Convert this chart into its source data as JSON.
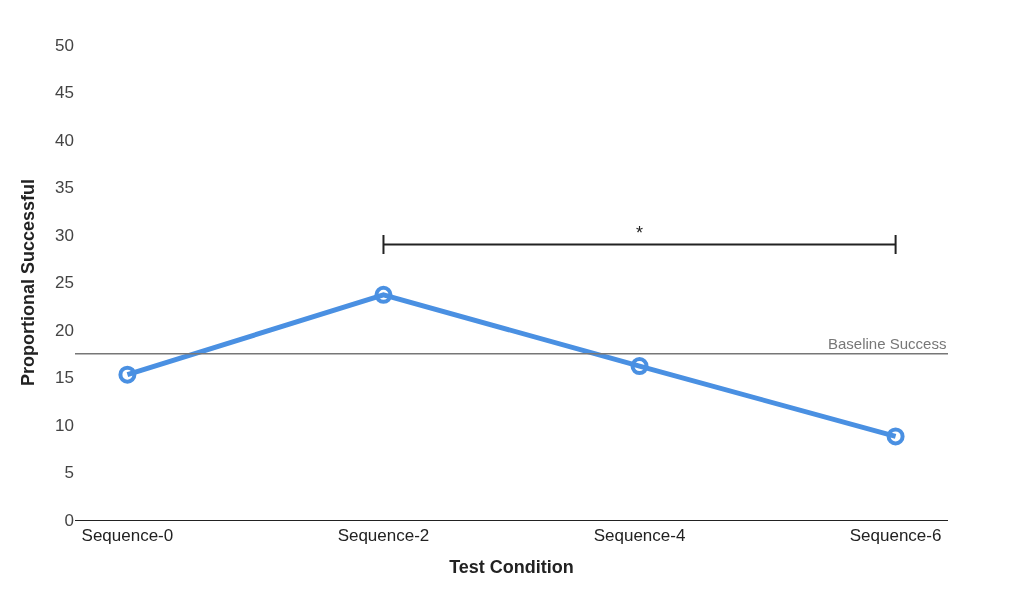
{
  "chart_data": {
    "type": "line",
    "xlabel": "Test Condition",
    "ylabel": "Proportional Successful",
    "categories": [
      "Sequence-0",
      "Sequence-2",
      "Sequence-4",
      "Sequence-6"
    ],
    "series": [
      {
        "color": "#4a90e2",
        "values": [
          15.3,
          23.7,
          16.2,
          8.8
        ]
      }
    ],
    "ylim": [
      0,
      50
    ],
    "yticks": [
      0,
      5,
      10,
      15,
      20,
      25,
      30,
      35,
      40,
      45,
      50
    ],
    "ref_lines": [
      {
        "axis": "y",
        "value": 17.5,
        "label": "Baseline Success",
        "color": "#777777"
      }
    ],
    "annotations": [
      "*"
    ],
    "marker": "circle",
    "line_style": "solid"
  }
}
